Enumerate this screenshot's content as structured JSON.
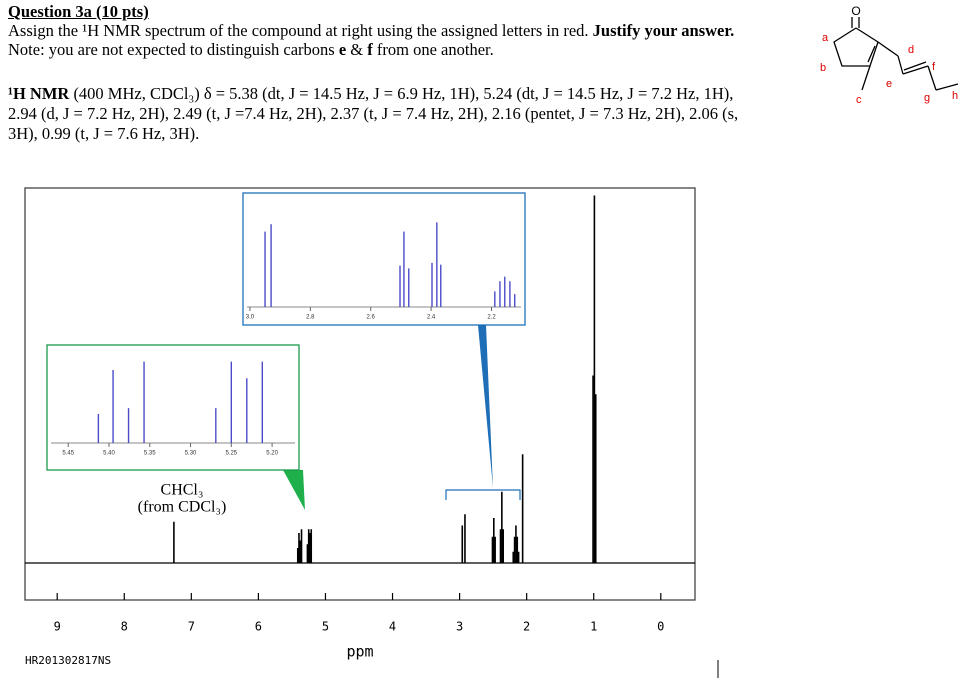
{
  "question": {
    "heading": "Question 3a (10 pts)",
    "instruction": "Assign the ¹H NMR spectrum of the compound at right using the assigned letters in red. ",
    "instruction_bold": "Justify your answer.",
    "note": [
      "Note: you are not expected to distinguish carbons ",
      "e",
      " & ",
      "f",
      " from one another."
    ]
  },
  "nmr": {
    "label": "¹H NMR",
    "lines": [
      " (400 MHz, CDCl₃) δ = 5.38 (dt, J = 14.5 Hz, J = 6.9 Hz, 1H), 5.24 (dt, J = 14.5 Hz, J = 7.2 Hz, 1H),",
      "2.94 (d, J = 7.2 Hz, 2H), 2.49 (t, J =7.4 Hz, 2H), 2.37 (t, J = 7.4 Hz, 2H), 2.16 (pentet, J = 7.3 Hz, 2H), 2.06 (s,",
      "3H), 0.99 (t, J = 7.6 Hz, 3H)."
    ]
  },
  "structure": {
    "atom": "O",
    "labels": [
      "a",
      "b",
      "c",
      "d",
      "e",
      "f",
      "g",
      "h"
    ]
  },
  "chart_data": {
    "type": "nmr-spectrum",
    "xlabel": "ppm",
    "xlim": [
      9.48,
      -0.51
    ],
    "xticks": [
      9,
      8,
      7,
      6,
      5,
      4,
      3,
      2,
      1,
      0
    ],
    "ylim": [
      0,
      100
    ],
    "color": "#000000",
    "peaks": {
      "x": [
        7.26,
        5.413,
        5.395,
        5.376,
        5.357,
        5.269,
        5.25,
        5.231,
        5.212,
        2.96,
        2.92,
        2.51,
        2.49,
        2.47,
        2.39,
        2.37,
        2.35,
        2.2,
        2.18,
        2.16,
        2.14,
        2.12,
        2.06,
        1.01,
        0.99,
        0.97
      ],
      "values": [
        11,
        4,
        8,
        6,
        9,
        5,
        9,
        8,
        9,
        10,
        13,
        7,
        12,
        7,
        9,
        19,
        9,
        3,
        7,
        10,
        7,
        3,
        29,
        50,
        98,
        45
      ]
    },
    "annotations": [
      "CHCl₃",
      "(from CDCl₃)"
    ],
    "footer": "HR201302817NS",
    "insets": [
      {
        "type": "nmr-spectrum",
        "color": "#4b4bc8",
        "border": "#1a9a4a",
        "xlim": [
          5.476,
          5.167
        ],
        "ylim": [
          0,
          100
        ],
        "xticks": [
          5.45,
          {
            "value": 5.4,
            "label": "5.40"
          },
          5.35,
          {
            "value": 5.3,
            "label": "5.30"
          },
          5.25,
          {
            "value": 5.2,
            "label": "5.20"
          }
        ],
        "peaks": {
          "x": [
            5.413,
            5.395,
            5.376,
            5.357,
            5.269,
            5.25,
            5.231,
            5.212
          ],
          "values": [
            35,
            88,
            42,
            98,
            42,
            98,
            78,
            98
          ]
        }
      },
      {
        "type": "nmr-spectrum",
        "color": "#4b4bc8",
        "border": "#1f6fb8",
        "xlim": [
          3.023,
          2.089
        ],
        "ylim": [
          0,
          100
        ],
        "xticks": [
          {
            "value": 3,
            "label": "3.0"
          },
          2.8,
          2.6,
          2.4,
          2.2
        ],
        "peaks": {
          "x": [
            2.95,
            2.93,
            2.503,
            2.49,
            2.474,
            2.397,
            2.381,
            2.368,
            2.189,
            2.172,
            2.156,
            2.139,
            2.123
          ],
          "values": [
            82,
            90,
            45,
            82,
            42,
            48,
            92,
            46,
            17,
            28,
            33,
            28,
            14
          ]
        }
      }
    ]
  }
}
